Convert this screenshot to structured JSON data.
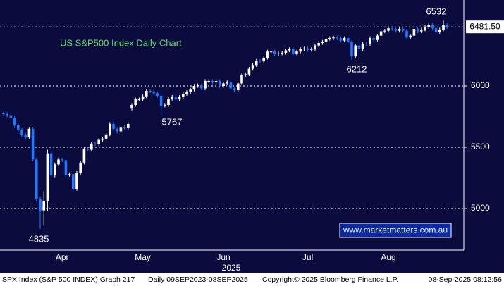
{
  "chart_data": {
    "type": "candlestick",
    "title": "US S&P500 Index Daily Chart",
    "watermark": "www.marketmatters.com.au",
    "year_label": "2025",
    "annotations": [
      "6532",
      "6212",
      "5767",
      "4835"
    ],
    "last_price": {
      "value": 6481.5,
      "label": "6481.50"
    },
    "footer": [
      "SPX Index (S&P 500 INDEX) Graph 217",
      "Daily 09SEP2023-08SEP2025",
      "Copyright© 2025 Bloomberg Finance L.P.",
      "08-Sep-2025 08:12:56"
    ],
    "up_color": "#ffffff",
    "down_color": "#1f78ff",
    "grid": true,
    "ylim": [
      4661,
      6701
    ],
    "yticks": [
      5000,
      5500,
      6000
    ],
    "categories": [
      null,
      null,
      null,
      null,
      null,
      null,
      null,
      null,
      null,
      null,
      null,
      null,
      null,
      null,
      null,
      null,
      "Apr",
      null,
      null,
      null,
      null,
      null,
      null,
      null,
      null,
      null,
      null,
      null,
      null,
      null,
      null,
      null,
      null,
      null,
      null,
      null,
      null,
      null,
      "May",
      null,
      null,
      null,
      null,
      null,
      null,
      null,
      null,
      null,
      null,
      null,
      null,
      null,
      null,
      null,
      null,
      null,
      null,
      null,
      null,
      null,
      "Jun",
      null,
      null,
      null,
      null,
      null,
      null,
      null,
      null,
      null,
      null,
      null,
      null,
      null,
      null,
      null,
      null,
      null,
      null,
      null,
      null,
      null,
      null,
      "Jul",
      null,
      null,
      null,
      null,
      null,
      null,
      null,
      null,
      null,
      null,
      null,
      null,
      null,
      null,
      null,
      null,
      null,
      null,
      null,
      null,
      null,
      "Aug",
      null,
      null,
      null,
      null,
      null,
      null,
      null,
      null,
      null,
      null,
      null,
      null,
      null,
      null,
      null,
      null
    ],
    "open": [
      5780,
      5770,
      5760,
      5740,
      5680,
      5640,
      5600,
      5580,
      5650,
      5400,
      5075,
      4985,
      5060,
      5450,
      5270,
      5360,
      5400,
      5395,
      5275,
      5280,
      5160,
      5290,
      5375,
      5485,
      5480,
      5530,
      5525,
      5560,
      5570,
      5605,
      5690,
      5650,
      5630,
      5665,
      5660,
      5815,
      5845,
      5890,
      5890,
      5915,
      5960,
      5955,
      5940,
      5920,
      5840,
      5845,
      5895,
      5910,
      5890,
      5910,
      5935,
      5950,
      5970,
      6000,
      6005,
      5980,
      6040,
      6040,
      6030,
      6040,
      6000,
      6020,
      6030,
      5980,
      5965,
      6020,
      6090,
      6095,
      6140,
      6170,
      6205,
      6200,
      6230,
      6280,
      6280,
      6260,
      6265,
      6270,
      6290,
      6300,
      6265,
      6280,
      6300,
      6305,
      6295,
      6300,
      6330,
      6350,
      6360,
      6385,
      6390,
      6395,
      6390,
      6370,
      6390,
      6360,
      6240,
      6330,
      6300,
      6345,
      6340,
      6390,
      6375,
      6410,
      6445,
      6450,
      6470,
      6465,
      6450,
      6465,
      6450,
      6395,
      6410,
      6465,
      6445,
      6460,
      6480,
      6500,
      6470,
      6440,
      6460,
      6500
    ],
    "high": [
      5795,
      5785,
      5775,
      5755,
      5695,
      5655,
      5615,
      5665,
      5665,
      5415,
      5100,
      5140,
      5480,
      5465,
      5375,
      5415,
      5415,
      5410,
      5295,
      5295,
      5305,
      5390,
      5500,
      5500,
      5545,
      5545,
      5575,
      5585,
      5620,
      5705,
      5705,
      5665,
      5680,
      5680,
      5705,
      5860,
      5905,
      5905,
      5930,
      5975,
      5975,
      5970,
      5955,
      5935,
      5860,
      5910,
      5925,
      5925,
      5925,
      5950,
      5965,
      5985,
      6015,
      6020,
      6020,
      6055,
      6055,
      6055,
      6055,
      6055,
      6035,
      6045,
      6045,
      5995,
      6035,
      6105,
      6110,
      6155,
      6185,
      6220,
      6220,
      6245,
      6295,
      6295,
      6295,
      6280,
      6285,
      6305,
      6315,
      6315,
      6295,
      6315,
      6320,
      6320,
      6315,
      6345,
      6365,
      6375,
      6400,
      6405,
      6410,
      6410,
      6405,
      6405,
      6405,
      6375,
      6345,
      6345,
      6360,
      6360,
      6405,
      6405,
      6425,
      6460,
      6465,
      6485,
      6485,
      6480,
      6480,
      6480,
      6465,
      6425,
      6480,
      6480,
      6475,
      6495,
      6515,
      6515,
      6485,
      6475,
      6532,
      6515
    ],
    "low": [
      5755,
      5745,
      5725,
      5665,
      5625,
      5585,
      5565,
      5565,
      5385,
      5060,
      4835,
      4860,
      4980,
      5255,
      5255,
      5345,
      5380,
      5260,
      5260,
      5145,
      5145,
      5275,
      5360,
      5465,
      5465,
      5510,
      5510,
      5545,
      5555,
      5590,
      5635,
      5615,
      5615,
      5645,
      5645,
      5800,
      5830,
      5875,
      5875,
      5900,
      5940,
      5925,
      5905,
      5767,
      5825,
      5830,
      5880,
      5875,
      5875,
      5895,
      5920,
      5935,
      5955,
      5985,
      5965,
      5965,
      6025,
      6015,
      6015,
      5985,
      5985,
      6005,
      5965,
      5950,
      5950,
      6005,
      6075,
      6080,
      6125,
      6155,
      6185,
      6185,
      6215,
      6265,
      6245,
      6245,
      6250,
      6255,
      6275,
      6250,
      6250,
      6265,
      6285,
      6280,
      6280,
      6285,
      6315,
      6335,
      6345,
      6370,
      6375,
      6375,
      6355,
      6355,
      6345,
      6212,
      6225,
      6285,
      6285,
      6325,
      6325,
      6360,
      6360,
      6395,
      6430,
      6435,
      6450,
      6435,
      6435,
      6435,
      6380,
      6380,
      6395,
      6430,
      6430,
      6445,
      6465,
      6455,
      6425,
      6425,
      6445,
      6465
    ],
    "close": [
      5770,
      5760,
      5740,
      5680,
      5640,
      5600,
      5580,
      5650,
      5400,
      5075,
      4985,
      5060,
      5450,
      5270,
      5360,
      5400,
      5395,
      5275,
      5280,
      5160,
      5290,
      5375,
      5485,
      5480,
      5530,
      5525,
      5560,
      5570,
      5605,
      5690,
      5650,
      5630,
      5665,
      5660,
      5690,
      5845,
      5890,
      5890,
      5915,
      5960,
      5955,
      5940,
      5920,
      5840,
      5845,
      5895,
      5910,
      5890,
      5910,
      5935,
      5950,
      5970,
      6000,
      6005,
      5980,
      6040,
      6040,
      6030,
      6040,
      6000,
      6020,
      6030,
      5980,
      5965,
      6020,
      6090,
      6095,
      6140,
      6170,
      6205,
      6200,
      6230,
      6280,
      6280,
      6260,
      6265,
      6270,
      6290,
      6300,
      6265,
      6280,
      6300,
      6305,
      6295,
      6300,
      6330,
      6350,
      6360,
      6385,
      6390,
      6395,
      6390,
      6370,
      6390,
      6360,
      6240,
      6330,
      6300,
      6345,
      6340,
      6390,
      6375,
      6410,
      6445,
      6450,
      6470,
      6465,
      6450,
      6465,
      6450,
      6395,
      6410,
      6465,
      6445,
      6460,
      6480,
      6500,
      6470,
      6440,
      6460,
      6500,
      6481.5
    ]
  }
}
